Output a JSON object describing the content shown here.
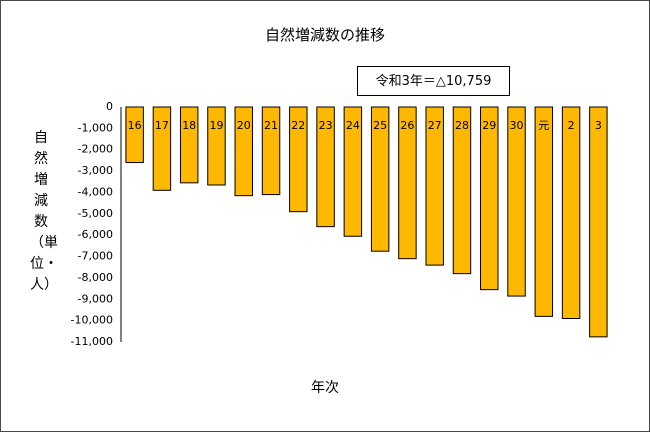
{
  "chart_data": {
    "type": "bar",
    "title": "自然増減数の推移",
    "annotation": "令和3年＝△10,759",
    "xlabel": "年次",
    "ylabel": "自然増減数（単位・人）",
    "categories": [
      "16",
      "17",
      "18",
      "19",
      "20",
      "21",
      "22",
      "23",
      "24",
      "25",
      "26",
      "27",
      "28",
      "29",
      "30",
      "元",
      "2",
      "3"
    ],
    "values": [
      -2600,
      -3900,
      -3550,
      -3650,
      -4150,
      -4100,
      -4900,
      -5600,
      -6050,
      -6750,
      -7100,
      -7400,
      -7800,
      -8550,
      -8850,
      -9800,
      -9900,
      -10759
    ],
    "ylim": [
      -11000,
      0
    ],
    "yticks": [
      0,
      -1000,
      -2000,
      -3000,
      -4000,
      -5000,
      -6000,
      -7000,
      -8000,
      -9000,
      -10000,
      -11000
    ],
    "ytick_labels": [
      "0",
      "-1,000",
      "-2,000",
      "-3,000",
      "-4,000",
      "-5,000",
      "-6,000",
      "-7,000",
      "-8,000",
      "-9,000",
      "-10,000",
      "-11,000"
    ],
    "bar_color": "#ffb800",
    "grid": false,
    "legend": "none"
  }
}
